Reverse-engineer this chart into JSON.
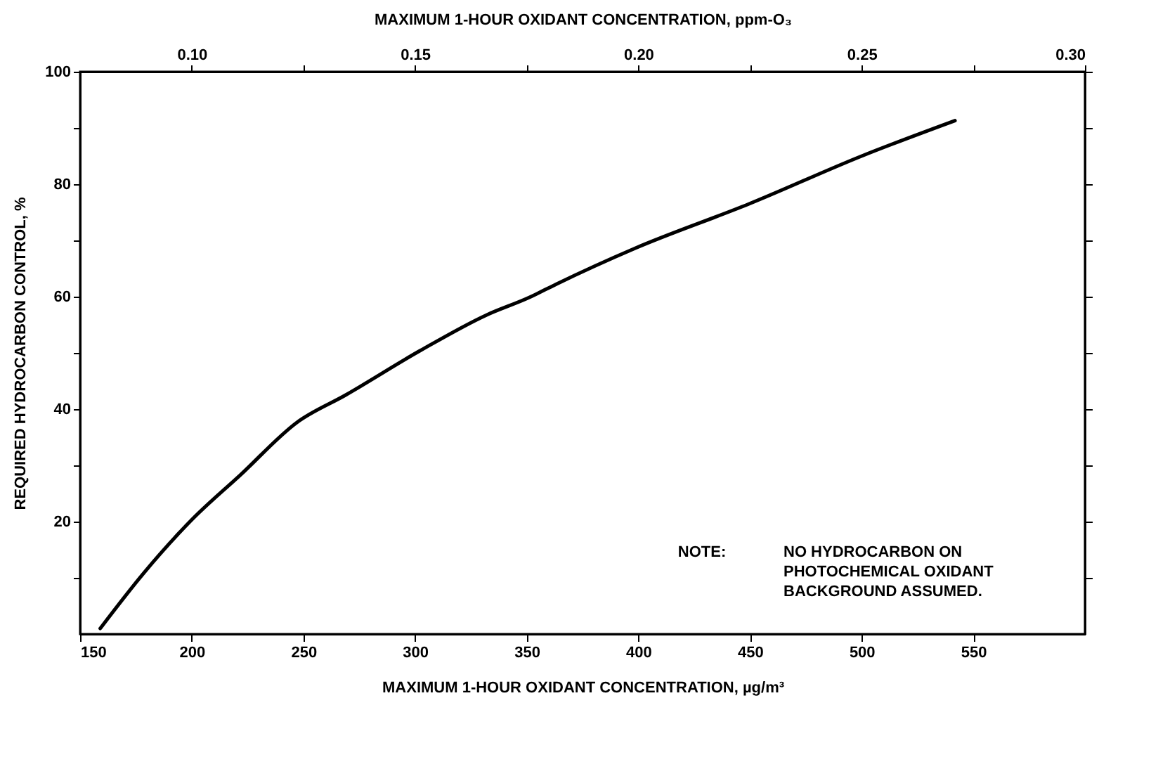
{
  "chart_data": {
    "type": "line",
    "xlabel": "MAXIMUM 1-HOUR OXIDANT CONCENTRATION, µg/m³",
    "x2label": "MAXIMUM 1-HOUR OXIDANT CONCENTRATION, ppm-O₃",
    "ylabel": "REQUIRED HYDROCARBON CONTROL, %",
    "series": [
      {
        "color": "#000000",
        "x": [
          159,
          178.6,
          200.2,
          221.8,
          247.3,
          268.9,
          302.3,
          331.8,
          351.4,
          363.1,
          398.5,
          449.6,
          500.6,
          541.8
        ],
        "values": [
          1,
          10.9,
          20.4,
          28.3,
          37.7,
          42.5,
          50.4,
          56.7,
          59.9,
          62.2,
          68.6,
          76.5,
          85.1,
          91.3
        ]
      }
    ],
    "xlim": [
      150,
      600
    ],
    "xticks": [
      150,
      200,
      250,
      300,
      350,
      400,
      450,
      500,
      550
    ],
    "x2lim": [
      0.075,
      0.3
    ],
    "x2ticks": [
      {
        "value": 0.1,
        "label": "0.10"
      },
      {
        "value": 0.125,
        "label": null
      },
      {
        "value": 0.15,
        "label": "0.15"
      },
      {
        "value": 0.175,
        "label": null
      },
      {
        "value": 0.2,
        "label": "0.20"
      },
      {
        "value": 0.225,
        "label": null
      },
      {
        "value": 0.25,
        "label": "0.25"
      },
      {
        "value": 0.275,
        "label": null
      },
      {
        "value": 0.3,
        "label": "0.30"
      }
    ],
    "ylim": [
      0,
      100
    ],
    "yticks": [
      {
        "value": 10,
        "label": null
      },
      20,
      {
        "value": 30,
        "label": null
      },
      40,
      {
        "value": 50,
        "label": null
      },
      60,
      {
        "value": 70,
        "label": null
      },
      80,
      {
        "value": 90,
        "label": null
      },
      100
    ],
    "annotations": [
      "NOTE:",
      "NO HYDROCARBON ON\nPHOTOCHEMICAL OXIDANT\nBACKGROUND ASSUMED."
    ],
    "grid": false,
    "marker": "none",
    "line_style": "solid"
  }
}
